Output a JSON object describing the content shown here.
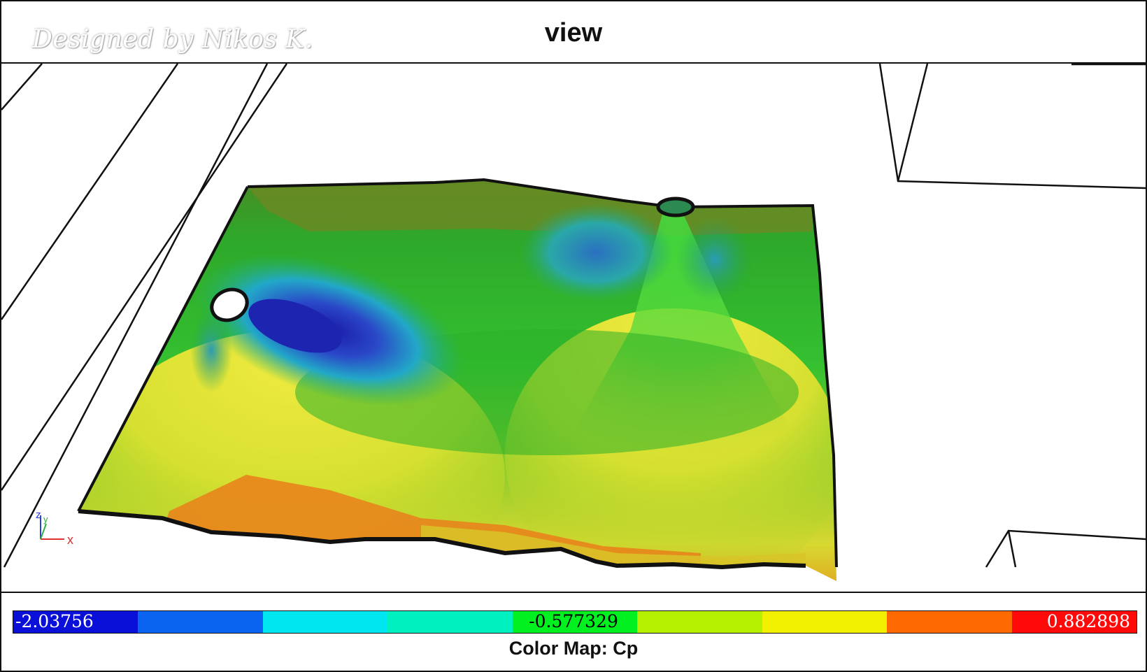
{
  "window": {
    "title": "view",
    "watermark": "Designed by Nikos K."
  },
  "viewport": {
    "axis_triad": {
      "x_label": "x",
      "y_label": "y",
      "z_label": "z"
    },
    "surface_colormap_field": "Cp"
  },
  "colorbar": {
    "min_label": "-2.03756",
    "mid_label": "-0.577329",
    "max_label": "0.882898",
    "title": "Color Map: Cp",
    "colors": [
      "#0a10d8",
      "#0a64f0",
      "#00e6f0",
      "#00f0c0",
      "#00f020",
      "#b4f000",
      "#f0f000",
      "#ff6a00",
      "#ff0a0a"
    ]
  }
}
